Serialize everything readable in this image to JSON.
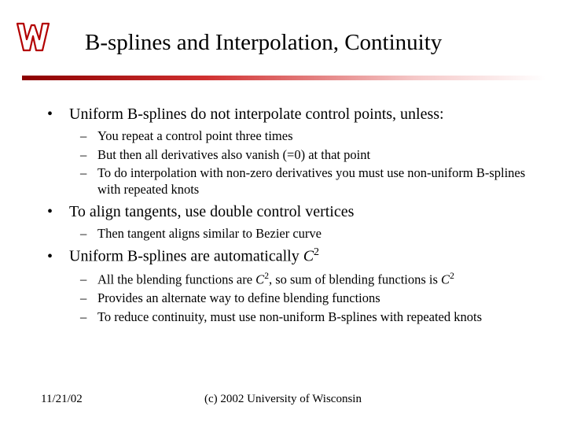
{
  "title": "B-splines and Interpolation, Continuity",
  "divider_gradient": [
    "#8b0000",
    "#d03030",
    "#f5c8c8",
    "#ffffff"
  ],
  "logo": {
    "name": "wisconsin-w-logo",
    "stroke": "#b30000",
    "fill": "#ffffff"
  },
  "bullets": [
    {
      "level": 1,
      "text": "Uniform B-splines do not interpolate control points, unless:"
    },
    {
      "level": 2,
      "text": "You repeat a control point three times"
    },
    {
      "level": 2,
      "text": "But then all derivatives also vanish (=0) at that point"
    },
    {
      "level": 2,
      "text": "To do interpolation with non-zero derivatives you must use non-uniform B-splines with repeated knots"
    },
    {
      "level": 1,
      "text": "To align tangents, use double control vertices"
    },
    {
      "level": 2,
      "text": "Then tangent aligns similar to Bezier curve"
    },
    {
      "level": 1,
      "text_html": "Uniform B-splines are automatically <span class='ital'>C</span><span class='sup'>2</span>"
    },
    {
      "level": 2,
      "text_html": "All the blending functions are <span class='ital'>C</span><span class='sup'>2</span>, so sum of blending functions is <span class='ital'>C</span><span class='sup'>2</span>"
    },
    {
      "level": 2,
      "text": "Provides an alternate way to define blending functions"
    },
    {
      "level": 2,
      "text": "To reduce continuity, must use non-uniform B-splines with repeated knots"
    }
  ],
  "footer": {
    "date": "11/21/02",
    "copyright": "(c) 2002 University of Wisconsin"
  },
  "markers": {
    "l1": "•",
    "l2": "–"
  },
  "typography": {
    "title_fontsize": 29,
    "l1_fontsize": 20,
    "l2_fontsize": 16.5,
    "footer_fontsize": 15,
    "font_family": "Times New Roman"
  },
  "background_color": "#ffffff"
}
